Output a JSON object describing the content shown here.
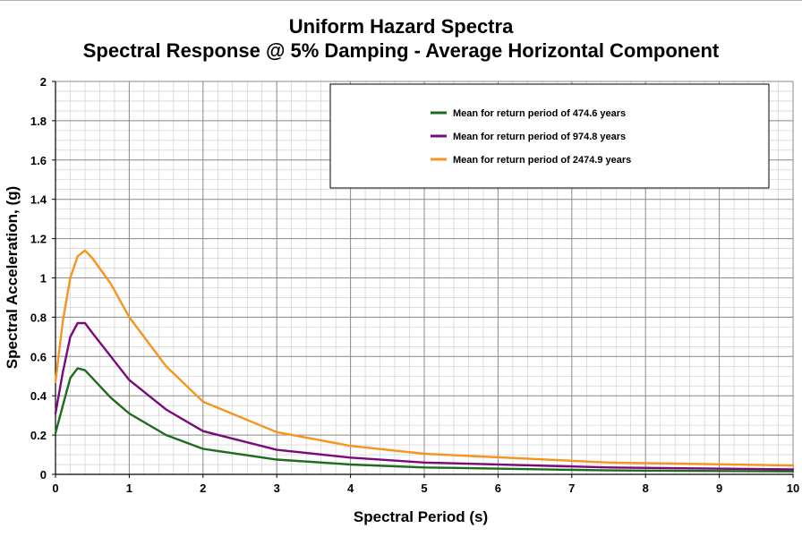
{
  "chart_data": {
    "type": "line",
    "title": "Uniform Hazard Spectra",
    "subtitle": "Spectral Response @ 5% Damping - Average Horizontal Component",
    "xlabel": "Spectral Period (s)",
    "ylabel": "Spectral Acceleration, (g)",
    "xlim": [
      0,
      10
    ],
    "ylim": [
      0,
      2
    ],
    "xticks": [
      0,
      1,
      2,
      3,
      4,
      5,
      6,
      7,
      8,
      9,
      10
    ],
    "yticks": [
      0,
      0.2,
      0.4,
      0.6,
      0.8,
      1,
      1.2,
      1.4,
      1.6,
      1.8,
      2
    ],
    "grid": true,
    "legend_position": "top-right",
    "series": [
      {
        "name": "Mean for return period of 474.6 years",
        "color": "#1e6b1e",
        "x": [
          0,
          0.1,
          0.2,
          0.3,
          0.4,
          0.5,
          0.75,
          1,
          1.5,
          2,
          3,
          4,
          5,
          7.5,
          10
        ],
        "y": [
          0.21,
          0.35,
          0.49,
          0.54,
          0.53,
          0.49,
          0.39,
          0.31,
          0.2,
          0.13,
          0.075,
          0.05,
          0.035,
          0.02,
          0.015
        ]
      },
      {
        "name": "Mean for return period of 974.8 years",
        "color": "#7a0a7a",
        "x": [
          0,
          0.1,
          0.2,
          0.3,
          0.4,
          0.5,
          0.75,
          1,
          1.5,
          2,
          3,
          4,
          5,
          7.5,
          10
        ],
        "y": [
          0.31,
          0.52,
          0.7,
          0.77,
          0.77,
          0.72,
          0.6,
          0.48,
          0.33,
          0.22,
          0.125,
          0.085,
          0.06,
          0.035,
          0.025
        ]
      },
      {
        "name": "Mean for return period of 2474.9 years",
        "color": "#f7941d",
        "x": [
          0,
          0.1,
          0.2,
          0.3,
          0.4,
          0.5,
          0.75,
          1,
          1.5,
          2,
          3,
          4,
          5,
          7.5,
          10
        ],
        "y": [
          0.47,
          0.78,
          1.0,
          1.11,
          1.14,
          1.1,
          0.97,
          0.8,
          0.55,
          0.37,
          0.215,
          0.145,
          0.105,
          0.06,
          0.045
        ]
      }
    ]
  }
}
